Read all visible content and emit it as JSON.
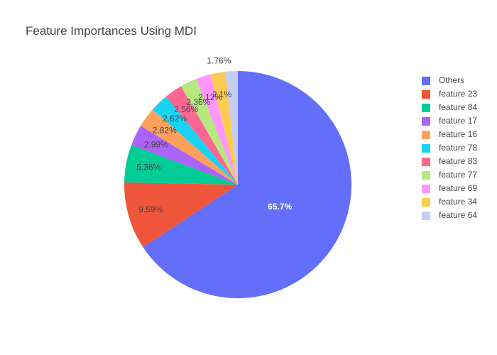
{
  "chart_data": {
    "type": "pie",
    "title": "Feature Importances Using MDI",
    "legend_position": "right",
    "slices": [
      {
        "label": "Others",
        "value": 65.7,
        "text": "65.7%",
        "color": "#636efa"
      },
      {
        "label": "feature 23",
        "value": 9.59,
        "text": "9.59%",
        "color": "#EF553B"
      },
      {
        "label": "feature 84",
        "value": 5.36,
        "text": "5.36%",
        "color": "#00cc96"
      },
      {
        "label": "feature 17",
        "value": 2.99,
        "text": "2.99%",
        "color": "#ab63fa"
      },
      {
        "label": "feature 16",
        "value": 2.82,
        "text": "2.82%",
        "color": "#FFA15A"
      },
      {
        "label": "feature 78",
        "value": 2.62,
        "text": "2.62%",
        "color": "#19d3f3"
      },
      {
        "label": "feature 83",
        "value": 2.56,
        "text": "2.56%",
        "color": "#FF6692"
      },
      {
        "label": "feature 77",
        "value": 2.36,
        "text": "2.36%",
        "color": "#B6E880"
      },
      {
        "label": "feature 69",
        "value": 2.12,
        "text": "2.12%",
        "color": "#FF97FF"
      },
      {
        "label": "feature 34",
        "value": 2.1,
        "text": "2.1%",
        "color": "#FECB52"
      },
      {
        "label": "feature 64",
        "value": 1.76,
        "text": "1.76%",
        "color": "#c5cdf5"
      }
    ]
  }
}
